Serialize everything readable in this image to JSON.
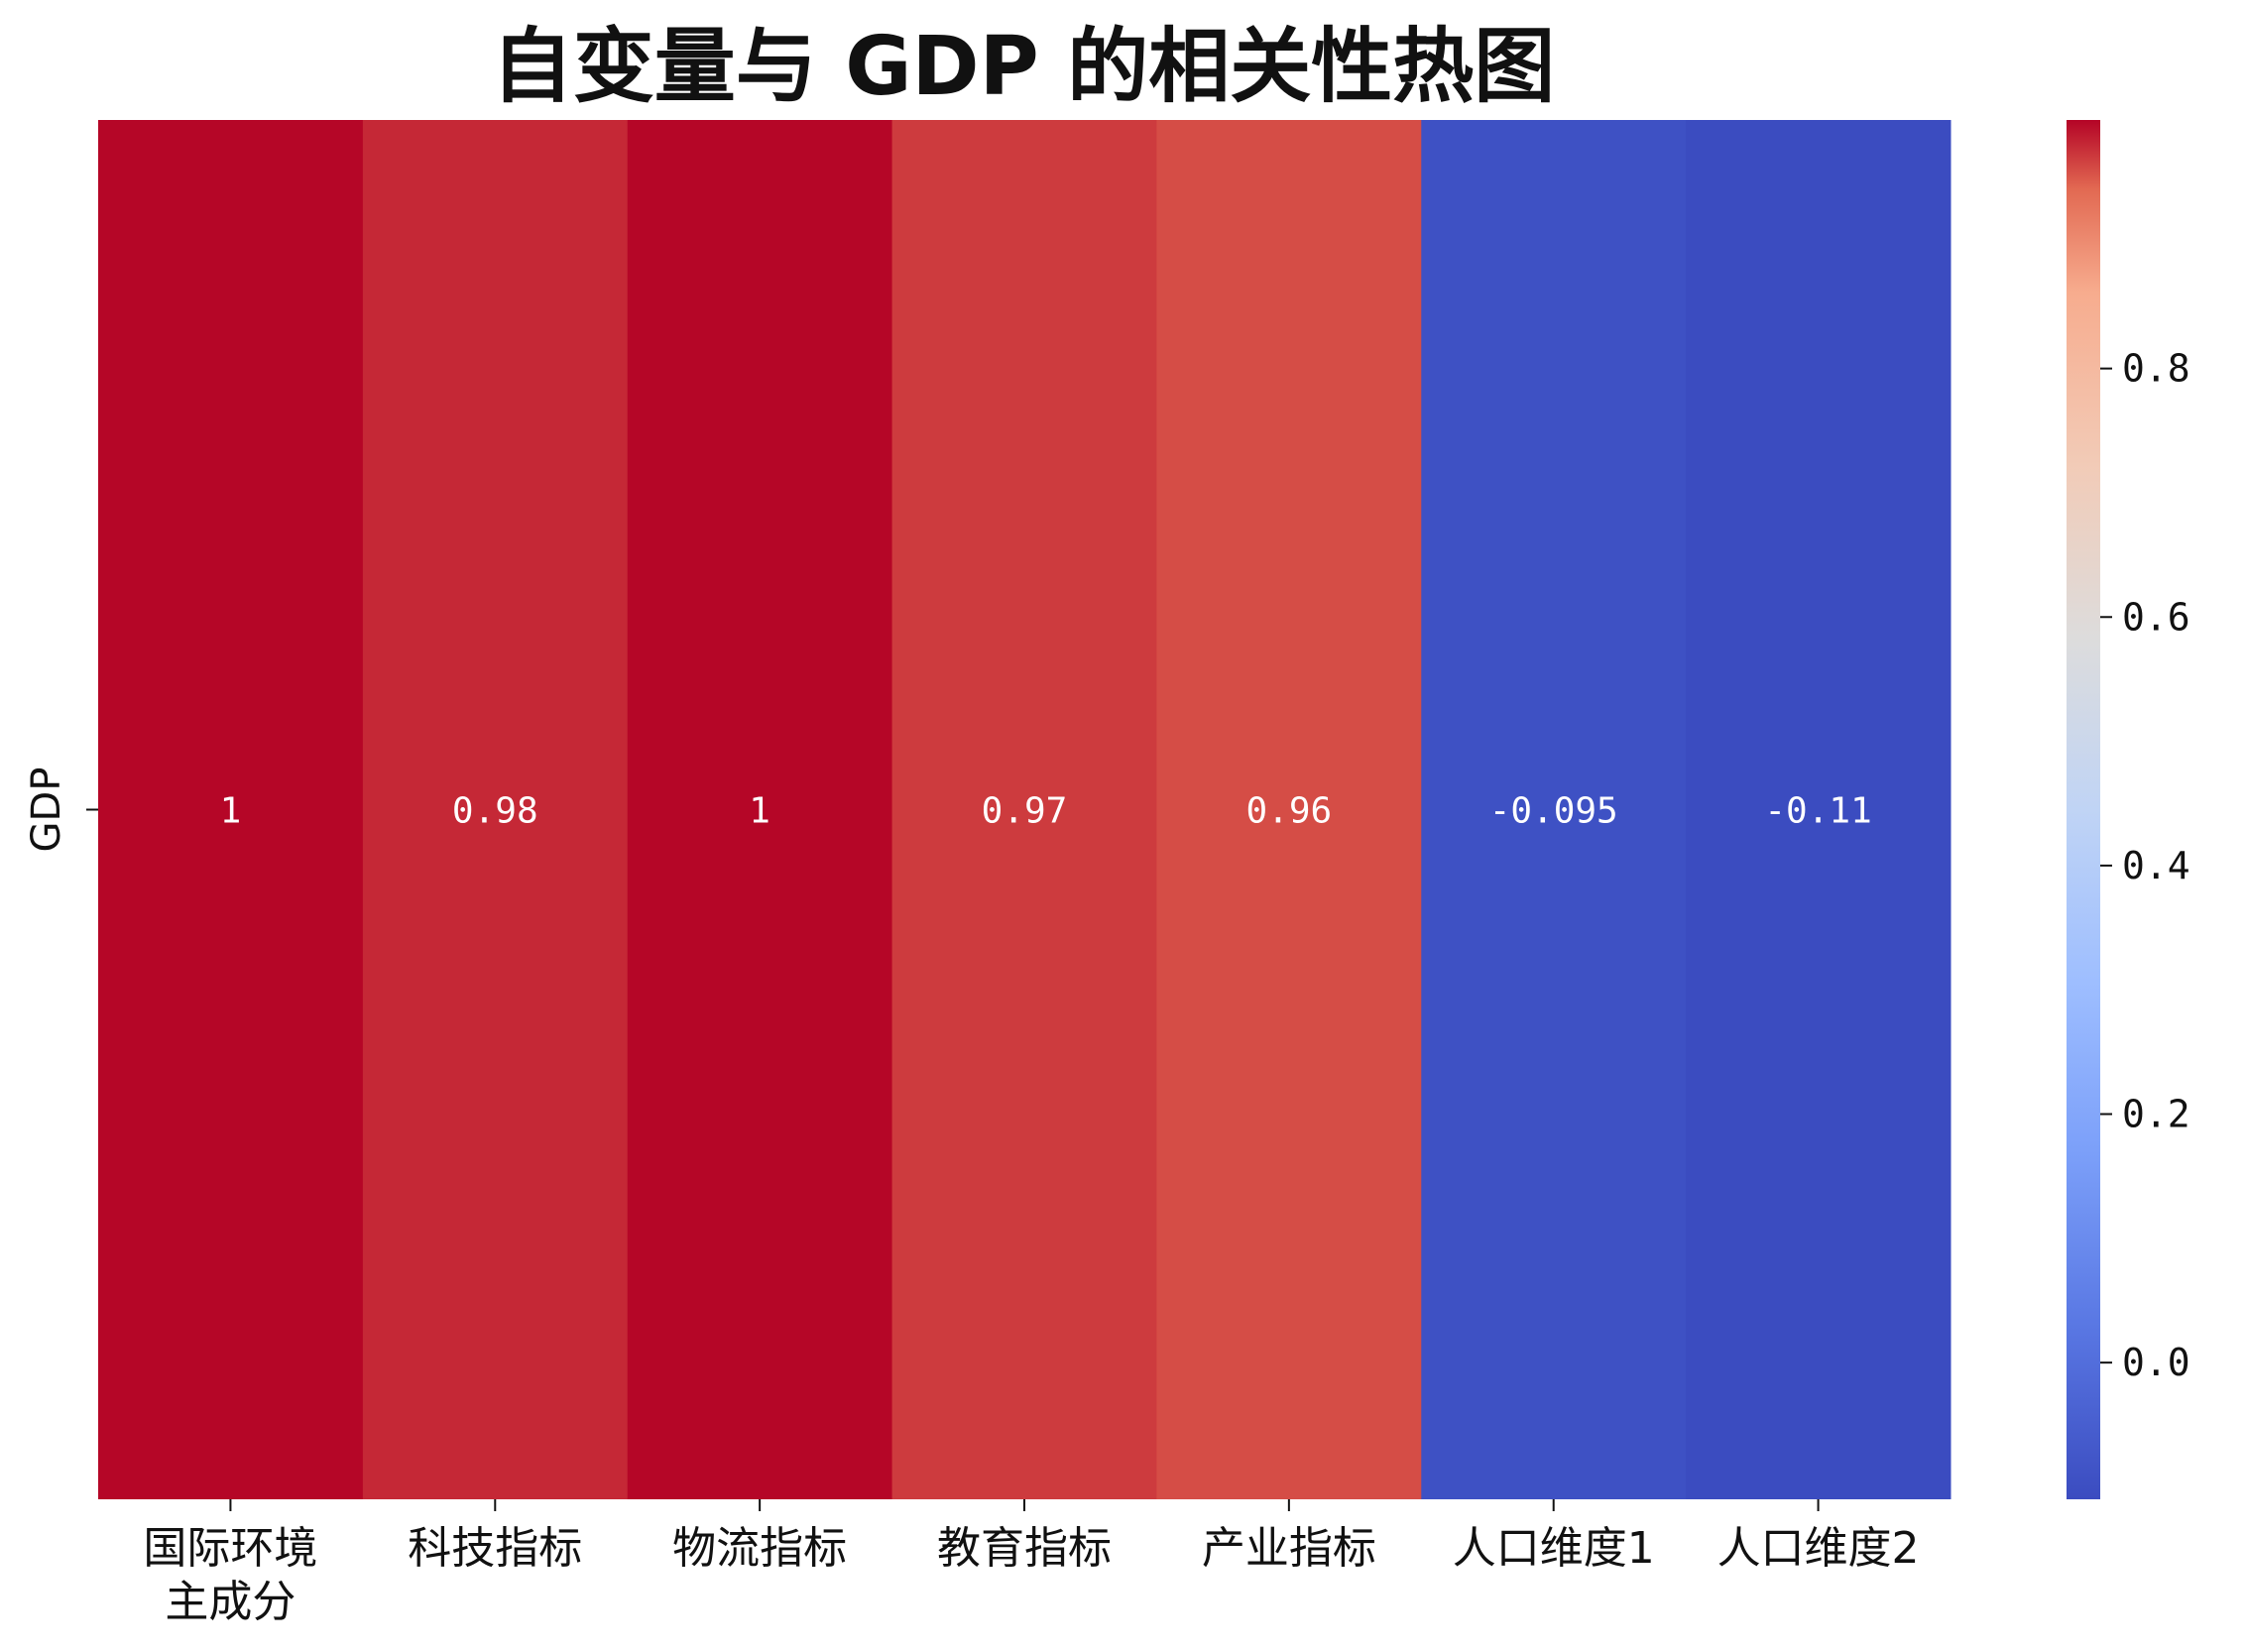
{
  "chart_data": {
    "type": "heatmap",
    "title": "自变量与 GDP 的相关性热图",
    "rows": [
      "GDP"
    ],
    "columns": [
      [
        "国际环境",
        "主成分"
      ],
      [
        "科技指标"
      ],
      [
        "物流指标"
      ],
      [
        "教育指标"
      ],
      [
        "产业指标"
      ],
      [
        "人口维度1"
      ],
      [
        "人口维度2"
      ]
    ],
    "values": [
      [
        0.999,
        0.98,
        0.999,
        0.97,
        0.96,
        -0.095,
        -0.11
      ]
    ],
    "annotations": [
      [
        "1",
        "0.98",
        "1",
        "0.97",
        "0.96",
        "-0.095",
        "-0.11"
      ]
    ],
    "colormap": "coolwarm",
    "vmin": -0.11,
    "vmax": 1.0,
    "colorbar_ticks": [
      0.0,
      0.2,
      0.4,
      0.6,
      0.8
    ],
    "colorbar_tick_labels": [
      "0.0",
      "0.2",
      "0.4",
      "0.6",
      "0.8"
    ]
  }
}
